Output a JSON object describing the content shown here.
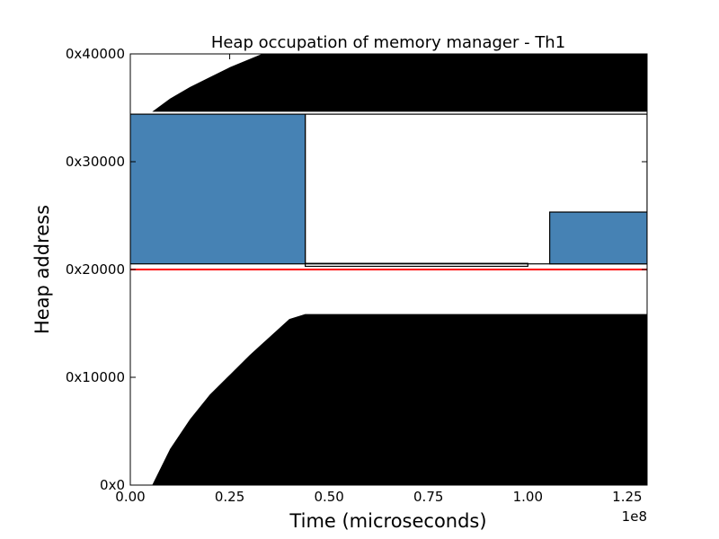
{
  "chart_data": {
    "type": "area",
    "title": "Heap occupation of memory manager - Th1",
    "xlabel": "Time (microseconds)",
    "ylabel": "Heap address",
    "x_offset_label": "1e8",
    "xlim": [
      0,
      1.3
    ],
    "ylim": [
      0,
      262144
    ],
    "xticks": [
      {
        "value": 0.0,
        "label": "0.00"
      },
      {
        "value": 0.25,
        "label": "0.25"
      },
      {
        "value": 0.5,
        "label": "0.50"
      },
      {
        "value": 0.75,
        "label": "0.75"
      },
      {
        "value": 1.0,
        "label": "1.00"
      },
      {
        "value": 1.25,
        "label": "1.25"
      }
    ],
    "yticks": [
      {
        "value": 0,
        "label": "0x0"
      },
      {
        "value": 65536,
        "label": "0x10000"
      },
      {
        "value": 131072,
        "label": "0x20000"
      },
      {
        "value": 196608,
        "label": "0x30000"
      },
      {
        "value": 262144,
        "label": "0x40000"
      }
    ],
    "colors": {
      "occupied": "#000000",
      "blocks": "#4682b4",
      "boundary": "#ff0000"
    },
    "lower_region": {
      "x": [
        0.055,
        0.1,
        0.15,
        0.2,
        0.25,
        0.3,
        0.35,
        0.4,
        0.44,
        1.3
      ],
      "y_top": [
        0,
        22000,
        40000,
        55000,
        67000,
        79000,
        90000,
        101000,
        104000,
        104000
      ]
    },
    "upper_region": {
      "x": [
        0.055,
        0.1,
        0.15,
        0.2,
        0.25,
        0.3,
        0.35,
        0.4,
        0.44,
        1.3
      ],
      "y_bottom": [
        227000,
        227000,
        227000,
        227000,
        227000,
        227000,
        227000,
        227000,
        227000,
        227000
      ],
      "y_top": [
        227000,
        235000,
        242000,
        248000,
        254000,
        259000,
        264000,
        269000,
        272000,
        272000
      ]
    },
    "blocks": [
      {
        "x0": 0.0,
        "x1": 0.44,
        "y0": 134500,
        "y1": 225500
      },
      {
        "x0": 1.055,
        "x1": 1.3,
        "y0": 134500,
        "y1": 166000
      }
    ],
    "block_outlines": [
      {
        "x0": 0.44,
        "x1": 1.3,
        "y0": 134500,
        "y1": 225500
      },
      {
        "x0": 0.44,
        "x1": 1.0,
        "y0": 133000,
        "y1": 134800
      }
    ],
    "boundary_line": 131072
  }
}
